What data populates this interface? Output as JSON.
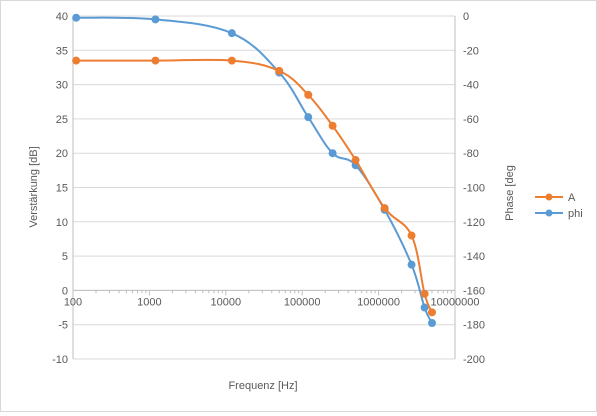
{
  "chart_data": {
    "type": "line",
    "title": "",
    "xlabel": "Frequenz [Hz]",
    "ylabel_left": "Verstärkung [dB]",
    "ylabel_right": "Phase [deg",
    "x_scale": "log",
    "xlim": [
      100,
      10000000
    ],
    "ylim_left": [
      -10,
      40
    ],
    "ylim_right": [
      -200,
      0
    ],
    "x_ticks": [
      "100",
      "1000",
      "10000",
      "100000",
      "1000000",
      "10000000"
    ],
    "y_ticks_left": [
      "-10",
      "-5",
      "0",
      "5",
      "10",
      "15",
      "20",
      "25",
      "30",
      "35",
      "40"
    ],
    "y_ticks_right": [
      "-200",
      "-180",
      "-160",
      "-140",
      "-120",
      "-100",
      "-80",
      "-60",
      "-40",
      "-20",
      "0"
    ],
    "grid": "horizontal",
    "legend_position": "right",
    "series": [
      {
        "name": "A",
        "axis": "left",
        "color": "#ED7D31",
        "x": [
          110,
          1200,
          12000,
          50000,
          120000,
          250000,
          500000,
          1200000,
          2700000,
          4000000,
          5000000
        ],
        "y": [
          33.5,
          33.5,
          33.5,
          32,
          28.5,
          24,
          19,
          12,
          8,
          -0.5,
          -3.2
        ]
      },
      {
        "name": "phi",
        "axis": "right",
        "color": "#5B9BD5",
        "x": [
          110,
          1200,
          12000,
          50000,
          120000,
          250000,
          500000,
          1200000,
          2700000,
          4000000,
          5000000
        ],
        "y": [
          -1,
          -2,
          -10,
          -33,
          -59,
          -80,
          -87,
          -113,
          -145,
          -170,
          -179
        ]
      }
    ]
  }
}
